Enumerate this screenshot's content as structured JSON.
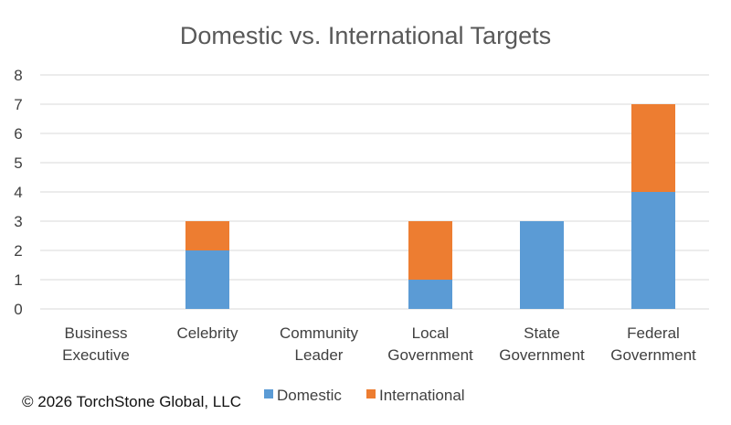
{
  "chart_data": {
    "type": "bar",
    "stacked": true,
    "title": "Domestic vs. International Targets",
    "xlabel": "",
    "ylabel": "",
    "ylim": [
      0,
      8
    ],
    "yticks": [
      0,
      1,
      2,
      3,
      4,
      5,
      6,
      7,
      8
    ],
    "grid": true,
    "legend_position": "bottom",
    "categories": [
      [
        "Business",
        "Executive"
      ],
      [
        "Celebrity"
      ],
      [
        "Community",
        "Leader"
      ],
      [
        "Local",
        "Government"
      ],
      [
        "State",
        "Government"
      ],
      [
        "Federal",
        "Government"
      ]
    ],
    "series": [
      {
        "name": "Domestic",
        "color": "#5b9bd5",
        "values": [
          0,
          2,
          0,
          1,
          3,
          4
        ]
      },
      {
        "name": "International",
        "color": "#ed7d31",
        "values": [
          0,
          1,
          0,
          2,
          0,
          3
        ]
      }
    ]
  },
  "footer": {
    "copyright": "© 2026 TorchStone Global, LLC"
  }
}
